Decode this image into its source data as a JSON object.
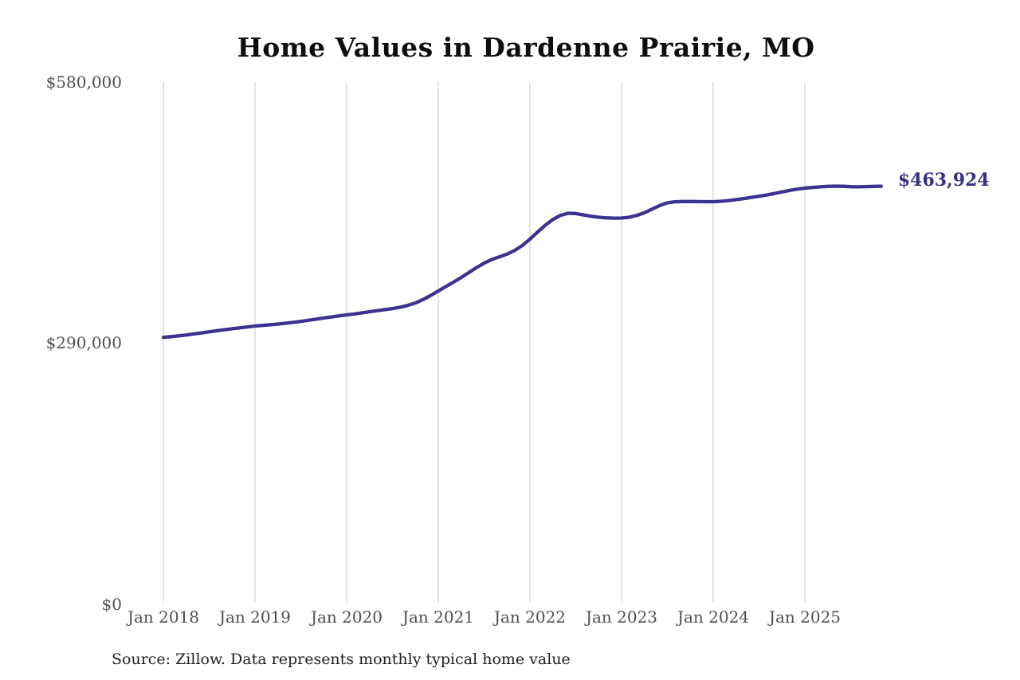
{
  "title": "Home Values in Dardenne Prairie, MO",
  "source_note": "Source: Zillow. Data represents monthly typical home value",
  "end_label": "$463,924",
  "colors": {
    "line": "#3b338f",
    "end_label": "#363181",
    "grid": "#c9c9c9",
    "tick_label": "#4f4f4f",
    "title": "#0d0d0d",
    "source": "#1f1f1f",
    "background": "#ffffff"
  },
  "chart_data": {
    "type": "line",
    "title": "Home Values in Dardenne Prairie, MO",
    "xlabel": "",
    "ylabel": "",
    "x_interval": "monthly",
    "start_month": "2018-01",
    "end_month": "2025-11",
    "x_tick_labels": [
      "Jan 2018",
      "Jan 2019",
      "Jan 2020",
      "Jan 2021",
      "Jan 2022",
      "Jan 2023",
      "Jan 2024",
      "Jan 2025"
    ],
    "y_ticks": [
      0,
      290000,
      580000
    ],
    "y_tick_labels": [
      "$0",
      "$290,000",
      "$580,000"
    ],
    "ylim": [
      0,
      580000
    ],
    "grid": "vertical gridlines only",
    "legend": "none",
    "annotations": [
      {
        "text": "$463,924",
        "position": "end-of-line",
        "value": 463924
      }
    ],
    "series": [
      {
        "name": "Typical home value",
        "values": [
          296000,
          296800,
          297700,
          298700,
          299800,
          301000,
          302200,
          303400,
          304500,
          305600,
          306600,
          307600,
          308600,
          309300,
          310000,
          310800,
          311700,
          312700,
          313800,
          315000,
          316200,
          317500,
          318700,
          319900,
          321000,
          322000,
          323200,
          324500,
          325700,
          326800,
          328000,
          329500,
          331500,
          334200,
          338000,
          342500,
          347600,
          352500,
          357500,
          362500,
          368000,
          373500,
          378500,
          382500,
          385500,
          388500,
          392500,
          398000,
          405100,
          413000,
          420500,
          427000,
          431500,
          433900,
          433500,
          432000,
          430500,
          429500,
          428800,
          428500,
          428600,
          429500,
          431500,
          434500,
          438500,
          442500,
          445500,
          446600,
          446900,
          446900,
          446800,
          446700,
          446700,
          447200,
          448000,
          449000,
          450200,
          451500,
          452800,
          454200,
          455800,
          457500,
          459200,
          460700,
          461800,
          462600,
          463200,
          463700,
          464000,
          463800,
          463400,
          463200,
          463500,
          463700,
          463924
        ]
      }
    ]
  }
}
